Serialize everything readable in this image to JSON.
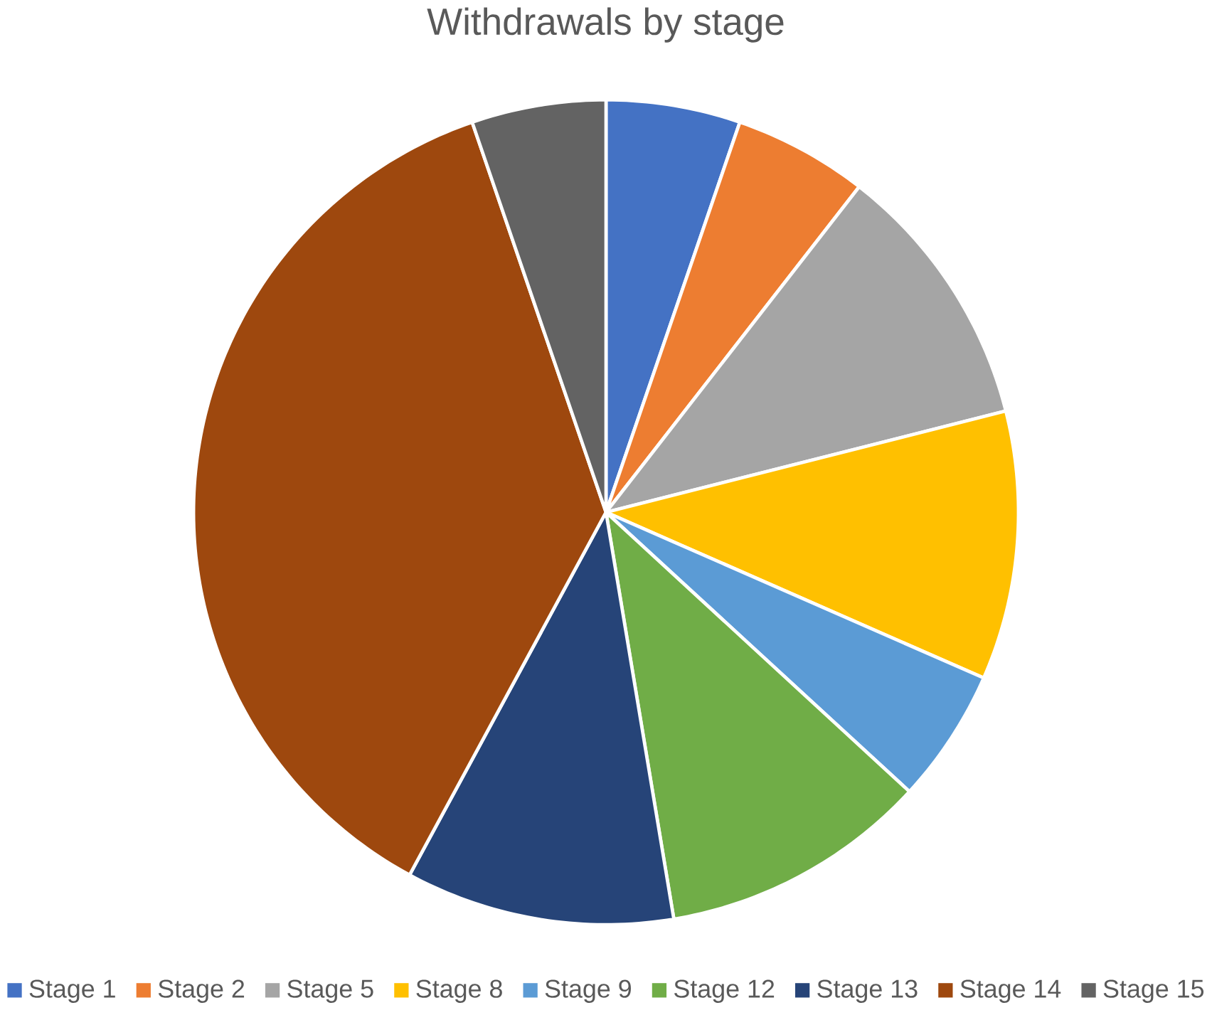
{
  "chart_data": {
    "type": "pie",
    "title": "Withdrawals by stage",
    "categories": [
      "Stage 1",
      "Stage 2",
      "Stage 5",
      "Stage 8",
      "Stage 9",
      "Stage 12",
      "Stage 13",
      "Stage 14",
      "Stage 15"
    ],
    "values": [
      5.26,
      5.26,
      10.53,
      10.53,
      5.26,
      10.53,
      10.53,
      36.84,
      5.26
    ],
    "colors": [
      "#4472c4",
      "#ed7d31",
      "#a5a5a5",
      "#ffc000",
      "#5b9bd5",
      "#70ad47",
      "#264478",
      "#9e480e",
      "#636363"
    ],
    "legend": "bottom"
  }
}
